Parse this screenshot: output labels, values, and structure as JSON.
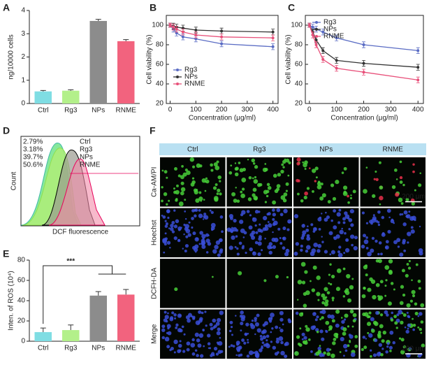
{
  "chart_data": [
    {
      "type": "bar",
      "panel_label": "A",
      "y_label": "ng/10000 cells",
      "categories": [
        "Ctrl",
        "Rg3",
        "NPs",
        "RNME"
      ],
      "values": [
        0.52,
        0.55,
        3.55,
        2.68
      ],
      "errors": [
        0.04,
        0.04,
        0.07,
        0.07
      ],
      "colors": [
        "#7fdde3",
        "#b3f08a",
        "#8c8c8c",
        "#f2637e"
      ],
      "ylim": [
        0,
        4
      ],
      "yticks": [
        0,
        1,
        2,
        3,
        4
      ]
    },
    {
      "type": "line",
      "panel_label": "B",
      "y_label": "Cell viability (%)",
      "x_label": "Concentration (μg/ml)",
      "x": [
        0,
        12.5,
        25,
        50,
        100,
        200,
        400
      ],
      "xlim": [
        -15,
        420
      ],
      "xticks": [
        0,
        100,
        200,
        300,
        400
      ],
      "ylim": [
        20,
        110
      ],
      "yticks": [
        20,
        40,
        60,
        80,
        100
      ],
      "legend": "lower left",
      "series": [
        {
          "name": "Rg3",
          "color": "#5a6cc4",
          "values": [
            100,
            96,
            92,
            88,
            86,
            81,
            78
          ],
          "errors": [
            2,
            3,
            3,
            3,
            3,
            3,
            3
          ]
        },
        {
          "name": "NPs",
          "color": "#333333",
          "values": [
            100,
            99,
            98,
            97,
            95,
            94,
            93
          ],
          "errors": [
            2,
            3,
            3,
            3,
            3,
            3,
            3
          ]
        },
        {
          "name": "RNME",
          "color": "#e8507a",
          "values": [
            100,
            98,
            96,
            93,
            90,
            88,
            87
          ],
          "errors": [
            2,
            3,
            3,
            3,
            3,
            3,
            3
          ]
        }
      ]
    },
    {
      "type": "line",
      "panel_label": "C",
      "y_label": "Cell viability (%)",
      "x_label": "Concentration (μg/ml)",
      "x": [
        0,
        12.5,
        25,
        50,
        100,
        200,
        400
      ],
      "xlim": [
        -15,
        420
      ],
      "xticks": [
        0,
        100,
        200,
        300,
        400
      ],
      "ylim": [
        20,
        110
      ],
      "yticks": [
        20,
        40,
        60,
        80,
        100
      ],
      "legend": "upper left",
      "series": [
        {
          "name": "Rg3",
          "color": "#5a6cc4",
          "values": [
            100,
            98,
            96,
            93,
            87,
            80,
            74
          ],
          "errors": [
            2,
            3,
            3,
            3,
            3,
            3,
            3
          ]
        },
        {
          "name": "NPs",
          "color": "#333333",
          "values": [
            100,
            93,
            85,
            74,
            64,
            61,
            57
          ],
          "errors": [
            2,
            3,
            3,
            3,
            3,
            3,
            3
          ]
        },
        {
          "name": "RNME",
          "color": "#e8507a",
          "values": [
            100,
            90,
            80,
            65,
            56,
            52,
            44
          ],
          "errors": [
            2,
            3,
            3,
            3,
            3,
            3,
            3
          ]
        }
      ]
    },
    {
      "type": "bar",
      "panel_label": "E",
      "y_label": "Inten. of ROS (10⁴)",
      "annotation": "***",
      "categories": [
        "Ctrl",
        "Rg3",
        "NPs",
        "RNME"
      ],
      "values": [
        9,
        11,
        45,
        46
      ],
      "errors": [
        4,
        5,
        4,
        5
      ],
      "colors": [
        "#7fdde3",
        "#b3f08a",
        "#8c8c8c",
        "#f2637e"
      ],
      "ylim": [
        0,
        80
      ],
      "yticks": [
        0,
        20,
        40,
        60,
        80
      ]
    }
  ],
  "flow_panel": {
    "panel_label": "D",
    "y_label": "Count",
    "x_label": "DCF fluorescence",
    "legend": [
      {
        "percent": "2.79%",
        "name": "Ctrl",
        "color": "#3fb8a8"
      },
      {
        "percent": "3.18%",
        "name": "Rg3",
        "color": "#8fe050"
      },
      {
        "percent": "39.7%",
        "name": "NPs",
        "color": "#000000"
      },
      {
        "percent": "50.6%",
        "name": "RNME",
        "color": "#e8005a"
      }
    ]
  },
  "image_panel": {
    "panel_label": "F",
    "columns": [
      "Ctrl",
      "Rg3",
      "NPs",
      "RNME"
    ],
    "rows": [
      "Ca-AM/PI",
      "Hoechst",
      "DCFH-DA",
      "Merge"
    ],
    "scale_bar": "200 μm"
  }
}
